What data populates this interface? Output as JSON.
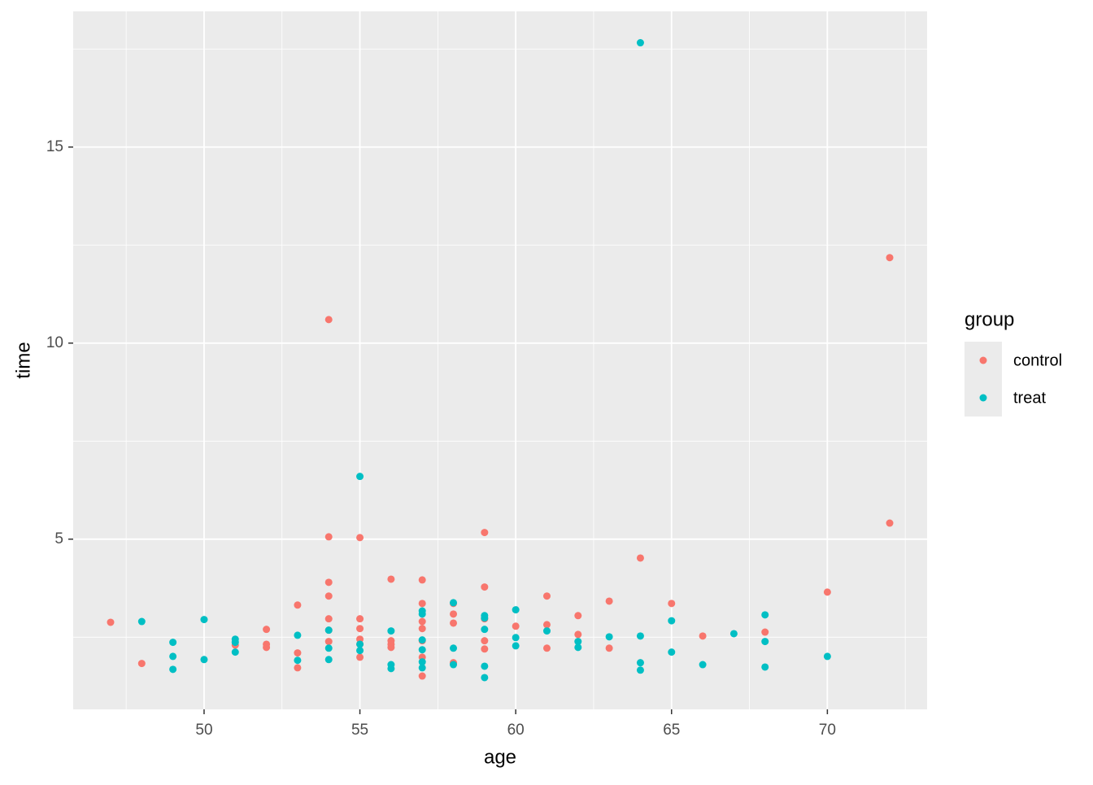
{
  "chart_data": {
    "type": "scatter",
    "x_label": "age",
    "y_label": "time",
    "legend_title": "group",
    "legend_position": "right",
    "xlim": [
      45.8,
      73.2
    ],
    "ylim": [
      0.66,
      18.46
    ],
    "xticks": [
      50,
      55,
      60,
      65,
      70
    ],
    "yticks": [
      5,
      10,
      15
    ],
    "xminor": [
      47.5,
      52.5,
      57.5,
      62.5,
      67.5,
      72.5
    ],
    "yminor": [
      2.5,
      7.5,
      12.5,
      17.5
    ],
    "grid": true,
    "background": "#ebebeb",
    "series": [
      {
        "name": "control",
        "color": "#F8766D",
        "x": [
          47,
          48,
          51,
          52,
          52,
          52,
          53,
          53,
          53,
          54,
          54,
          54,
          54,
          54,
          54,
          54,
          55,
          55,
          55,
          55,
          55,
          55,
          56,
          56,
          56,
          56,
          57,
          57,
          57,
          57,
          57,
          57,
          57,
          58,
          58,
          58,
          58,
          59,
          59,
          59,
          59,
          59,
          60,
          61,
          61,
          61,
          62,
          62,
          63,
          63,
          64,
          65,
          66,
          68,
          70,
          72,
          72
        ],
        "values": [
          2.88,
          1.83,
          2.3,
          2.7,
          2.32,
          2.24,
          3.32,
          2.1,
          1.72,
          10.6,
          5.06,
          3.9,
          3.55,
          2.97,
          2.68,
          2.39,
          5.04,
          2.97,
          2.72,
          2.45,
          2.32,
          1.99,
          3.98,
          2.41,
          2.32,
          2.24,
          3.96,
          3.36,
          2.9,
          2.72,
          2.41,
          1.99,
          1.51,
          3.36,
          3.09,
          2.86,
          1.85,
          5.17,
          3.78,
          2.97,
          2.41,
          2.2,
          2.78,
          3.55,
          2.82,
          2.22,
          3.05,
          2.57,
          3.42,
          2.22,
          4.52,
          3.36,
          2.53,
          2.63,
          3.65,
          12.18,
          5.41
        ]
      },
      {
        "name": "treat",
        "color": "#00BFC4",
        "x": [
          48,
          49,
          49,
          49,
          50,
          50,
          51,
          51,
          51,
          53,
          53,
          54,
          54,
          54,
          55,
          55,
          55,
          56,
          56,
          56,
          57,
          57,
          57,
          57,
          57,
          57,
          58,
          58,
          58,
          59,
          59,
          59,
          59,
          59,
          60,
          60,
          60,
          61,
          62,
          62,
          63,
          64,
          64,
          64,
          64,
          65,
          65,
          66,
          67,
          68,
          68,
          68,
          70
        ],
        "values": [
          2.9,
          2.37,
          2.01,
          1.68,
          2.95,
          1.93,
          2.45,
          2.37,
          2.12,
          2.55,
          1.91,
          2.68,
          2.22,
          1.93,
          6.6,
          2.32,
          2.16,
          2.66,
          1.8,
          1.7,
          3.17,
          3.09,
          2.43,
          2.18,
          1.87,
          1.72,
          3.38,
          2.22,
          1.8,
          3.05,
          2.99,
          2.7,
          1.76,
          1.47,
          3.2,
          2.49,
          2.28,
          2.66,
          2.39,
          2.24,
          2.51,
          17.66,
          2.53,
          1.85,
          1.66,
          2.92,
          2.12,
          1.8,
          2.59,
          3.07,
          2.39,
          1.74,
          2.01
        ]
      }
    ]
  }
}
